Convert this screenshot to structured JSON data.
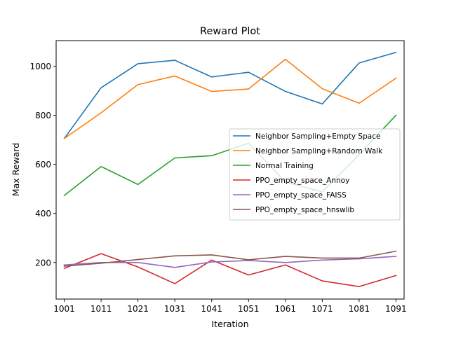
{
  "chart_data": {
    "type": "line",
    "title": "Reward Plot",
    "xlabel": "Iteration",
    "ylabel": "Max Reward",
    "x": [
      1001,
      1011,
      1021,
      1031,
      1041,
      1051,
      1061,
      1071,
      1081,
      1091
    ],
    "xticks": [
      "1001",
      "1011",
      "1021",
      "1031",
      "1041",
      "1051",
      "1061",
      "1071",
      "1081",
      "1091"
    ],
    "yticks": [
      200,
      400,
      600,
      800,
      1000
    ],
    "xlim": [
      998.8,
      1093.2
    ],
    "ylim": [
      51,
      1104
    ],
    "grid": false,
    "legend_position": "center-right",
    "series": [
      {
        "name": "Neighbor Sampling+Empty Space",
        "color": "#1f77b4",
        "values": [
          705,
          912,
          1010,
          1024,
          956,
          975,
          897,
          846,
          1013,
          1056
        ]
      },
      {
        "name": "Neighbor Sampling+Random Walk",
        "color": "#ff7f0e",
        "values": [
          705,
          810,
          925,
          960,
          897,
          907,
          1028,
          908,
          849,
          951
        ]
      },
      {
        "name": "Normal Training",
        "color": "#2ca02c",
        "values": [
          473,
          591,
          518,
          626,
          635,
          686,
          528,
          488,
          640,
          800
        ]
      },
      {
        "name": "PPO_empty_space_Annoy",
        "color": "#d62728",
        "values": [
          176,
          236,
          182,
          114,
          210,
          149,
          190,
          125,
          102,
          147
        ]
      },
      {
        "name": "PPO_empty_space_FAISS",
        "color": "#9467bd",
        "values": [
          190,
          200,
          200,
          180,
          202,
          208,
          200,
          210,
          215,
          225
        ]
      },
      {
        "name": "PPO_empty_space_hnswlib",
        "color": "#8c564b",
        "values": [
          185,
          197,
          212,
          227,
          231,
          211,
          225,
          218,
          218,
          246
        ]
      }
    ]
  }
}
